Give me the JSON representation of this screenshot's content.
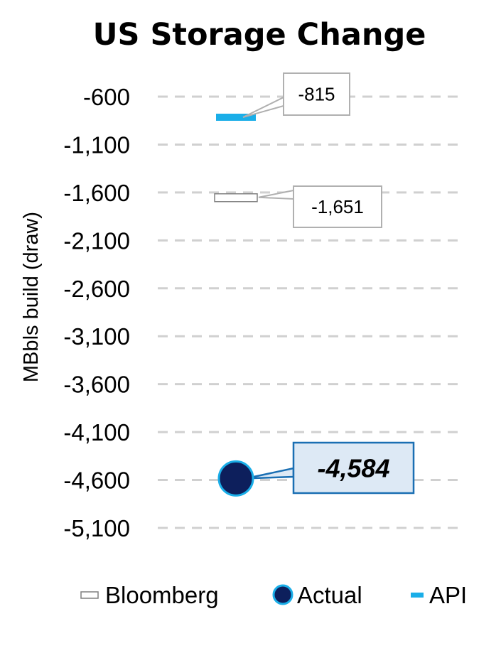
{
  "chart_data": {
    "type": "scatter",
    "title": "US Storage Change",
    "ylabel": "MBbls build (draw)",
    "ylim": [
      -5100,
      -600
    ],
    "yticks": [
      -600,
      -1100,
      -1600,
      -2100,
      -2600,
      -3100,
      -3600,
      -4100,
      -4600,
      -5100
    ],
    "ytick_labels": [
      "-600",
      "-1,100",
      "-1,600",
      "-2,100",
      "-2,600",
      "-3,100",
      "-3,600",
      "-4,100",
      "-4,600",
      "-5,100"
    ],
    "grid": true,
    "legend_position": "bottom",
    "series": [
      {
        "name": "Bloomberg",
        "value": -1651,
        "label": "-1,651",
        "marker": "bar-outline",
        "color": "#ffffff",
        "edge": "#808080"
      },
      {
        "name": "Actual",
        "value": -4584,
        "label": "-4,584",
        "marker": "circle",
        "color": "#0d1f5c",
        "edge": "#1aaee8"
      },
      {
        "name": "API",
        "value": -815,
        "label": "-815",
        "marker": "bar",
        "color": "#1aaee8"
      }
    ]
  }
}
